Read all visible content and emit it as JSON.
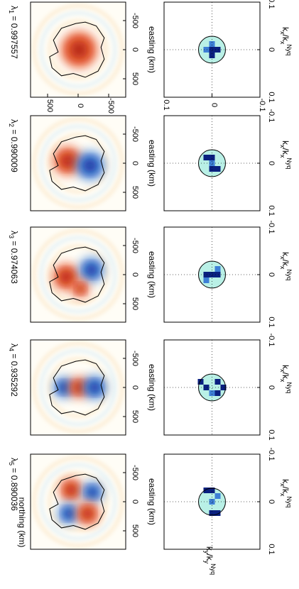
{
  "figure": {
    "ylabel_top": "northing (km)",
    "ylabel_bottom": "k_y/k_y^Nyq",
    "top_row": {
      "xlabel": "easting (km)",
      "x_ticks": [
        "-500",
        "0",
        "500"
      ],
      "y_ticks": [
        "500",
        "0",
        "-500"
      ]
    },
    "bottom_row": {
      "xlabel": "k_x/k_x^Nyq",
      "x_ticks": [
        "-0.1",
        "0",
        "0.1"
      ],
      "y_ticks": [
        "0.1",
        "0",
        "-0.1"
      ]
    }
  },
  "chart_data": [
    {
      "type": "heatmap",
      "panel": "spatial",
      "index": 1,
      "eigenvalue_symbol": "λ",
      "subscript": "1",
      "eigenvalue": "0.997557",
      "xlabel": "easting (km)",
      "ylabel": "northing (km)",
      "xlim": [
        -800,
        800
      ],
      "ylim": [
        -800,
        800
      ],
      "pattern": "single-positive-lobe"
    },
    {
      "type": "heatmap",
      "panel": "spatial",
      "index": 2,
      "eigenvalue_symbol": "λ",
      "subscript": "2",
      "eigenvalue": "0.990009",
      "xlabel": "easting (km)",
      "xlim": [
        -800,
        800
      ],
      "ylim": [
        -800,
        800
      ],
      "pattern": "dipole"
    },
    {
      "type": "heatmap",
      "panel": "spatial",
      "index": 3,
      "eigenvalue_symbol": "λ",
      "subscript": "3",
      "eigenvalue": "0.974063",
      "xlabel": "easting (km)",
      "xlim": [
        -800,
        800
      ],
      "ylim": [
        -800,
        800
      ],
      "pattern": "dipole"
    },
    {
      "type": "heatmap",
      "panel": "spatial",
      "index": 4,
      "eigenvalue_symbol": "λ",
      "subscript": "4",
      "eigenvalue": "0.935292",
      "xlabel": "easting (km)",
      "xlim": [
        -800,
        800
      ],
      "ylim": [
        -800,
        800
      ],
      "pattern": "tripole"
    },
    {
      "type": "heatmap",
      "panel": "spatial",
      "index": 5,
      "eigenvalue_symbol": "λ",
      "subscript": "5",
      "eigenvalue": "0.890036",
      "xlabel": "easting (km)",
      "xlim": [
        -800,
        800
      ],
      "ylim": [
        -800,
        800
      ],
      "pattern": "quadrupole"
    },
    {
      "type": "heatmap",
      "panel": "spectral",
      "index": 1,
      "xlabel": "k_x/k_x^Nyq",
      "ylabel": "k_y/k_y^Nyq",
      "xlim": [
        -0.1,
        0.1
      ],
      "ylim": [
        -0.1,
        0.1
      ]
    },
    {
      "type": "heatmap",
      "panel": "spectral",
      "index": 2,
      "xlabel": "k_x/k_x^Nyq",
      "xlim": [
        -0.1,
        0.1
      ],
      "ylim": [
        -0.1,
        0.1
      ]
    },
    {
      "type": "heatmap",
      "panel": "spectral",
      "index": 3,
      "xlabel": "k_x/k_x^Nyq",
      "xlim": [
        -0.1,
        0.1
      ],
      "ylim": [
        -0.1,
        0.1
      ]
    },
    {
      "type": "heatmap",
      "panel": "spectral",
      "index": 4,
      "xlabel": "k_x/k_x^Nyq",
      "xlim": [
        -0.1,
        0.1
      ],
      "ylim": [
        -0.1,
        0.1
      ]
    },
    {
      "type": "heatmap",
      "panel": "spectral",
      "index": 5,
      "xlabel": "k_x/k_x^Nyq",
      "xlim": [
        -0.1,
        0.1
      ],
      "ylim": [
        -0.1,
        0.1
      ]
    }
  ],
  "colors": {
    "positive_strong": "#a81a0a",
    "positive": "#e8562a",
    "negative_strong": "#0b1f8f",
    "negative": "#3d7fd6",
    "spectral_light": "#b9f0e6",
    "spectral_dark": "#0a2080",
    "spectral_mid": "#3d7fd6"
  }
}
